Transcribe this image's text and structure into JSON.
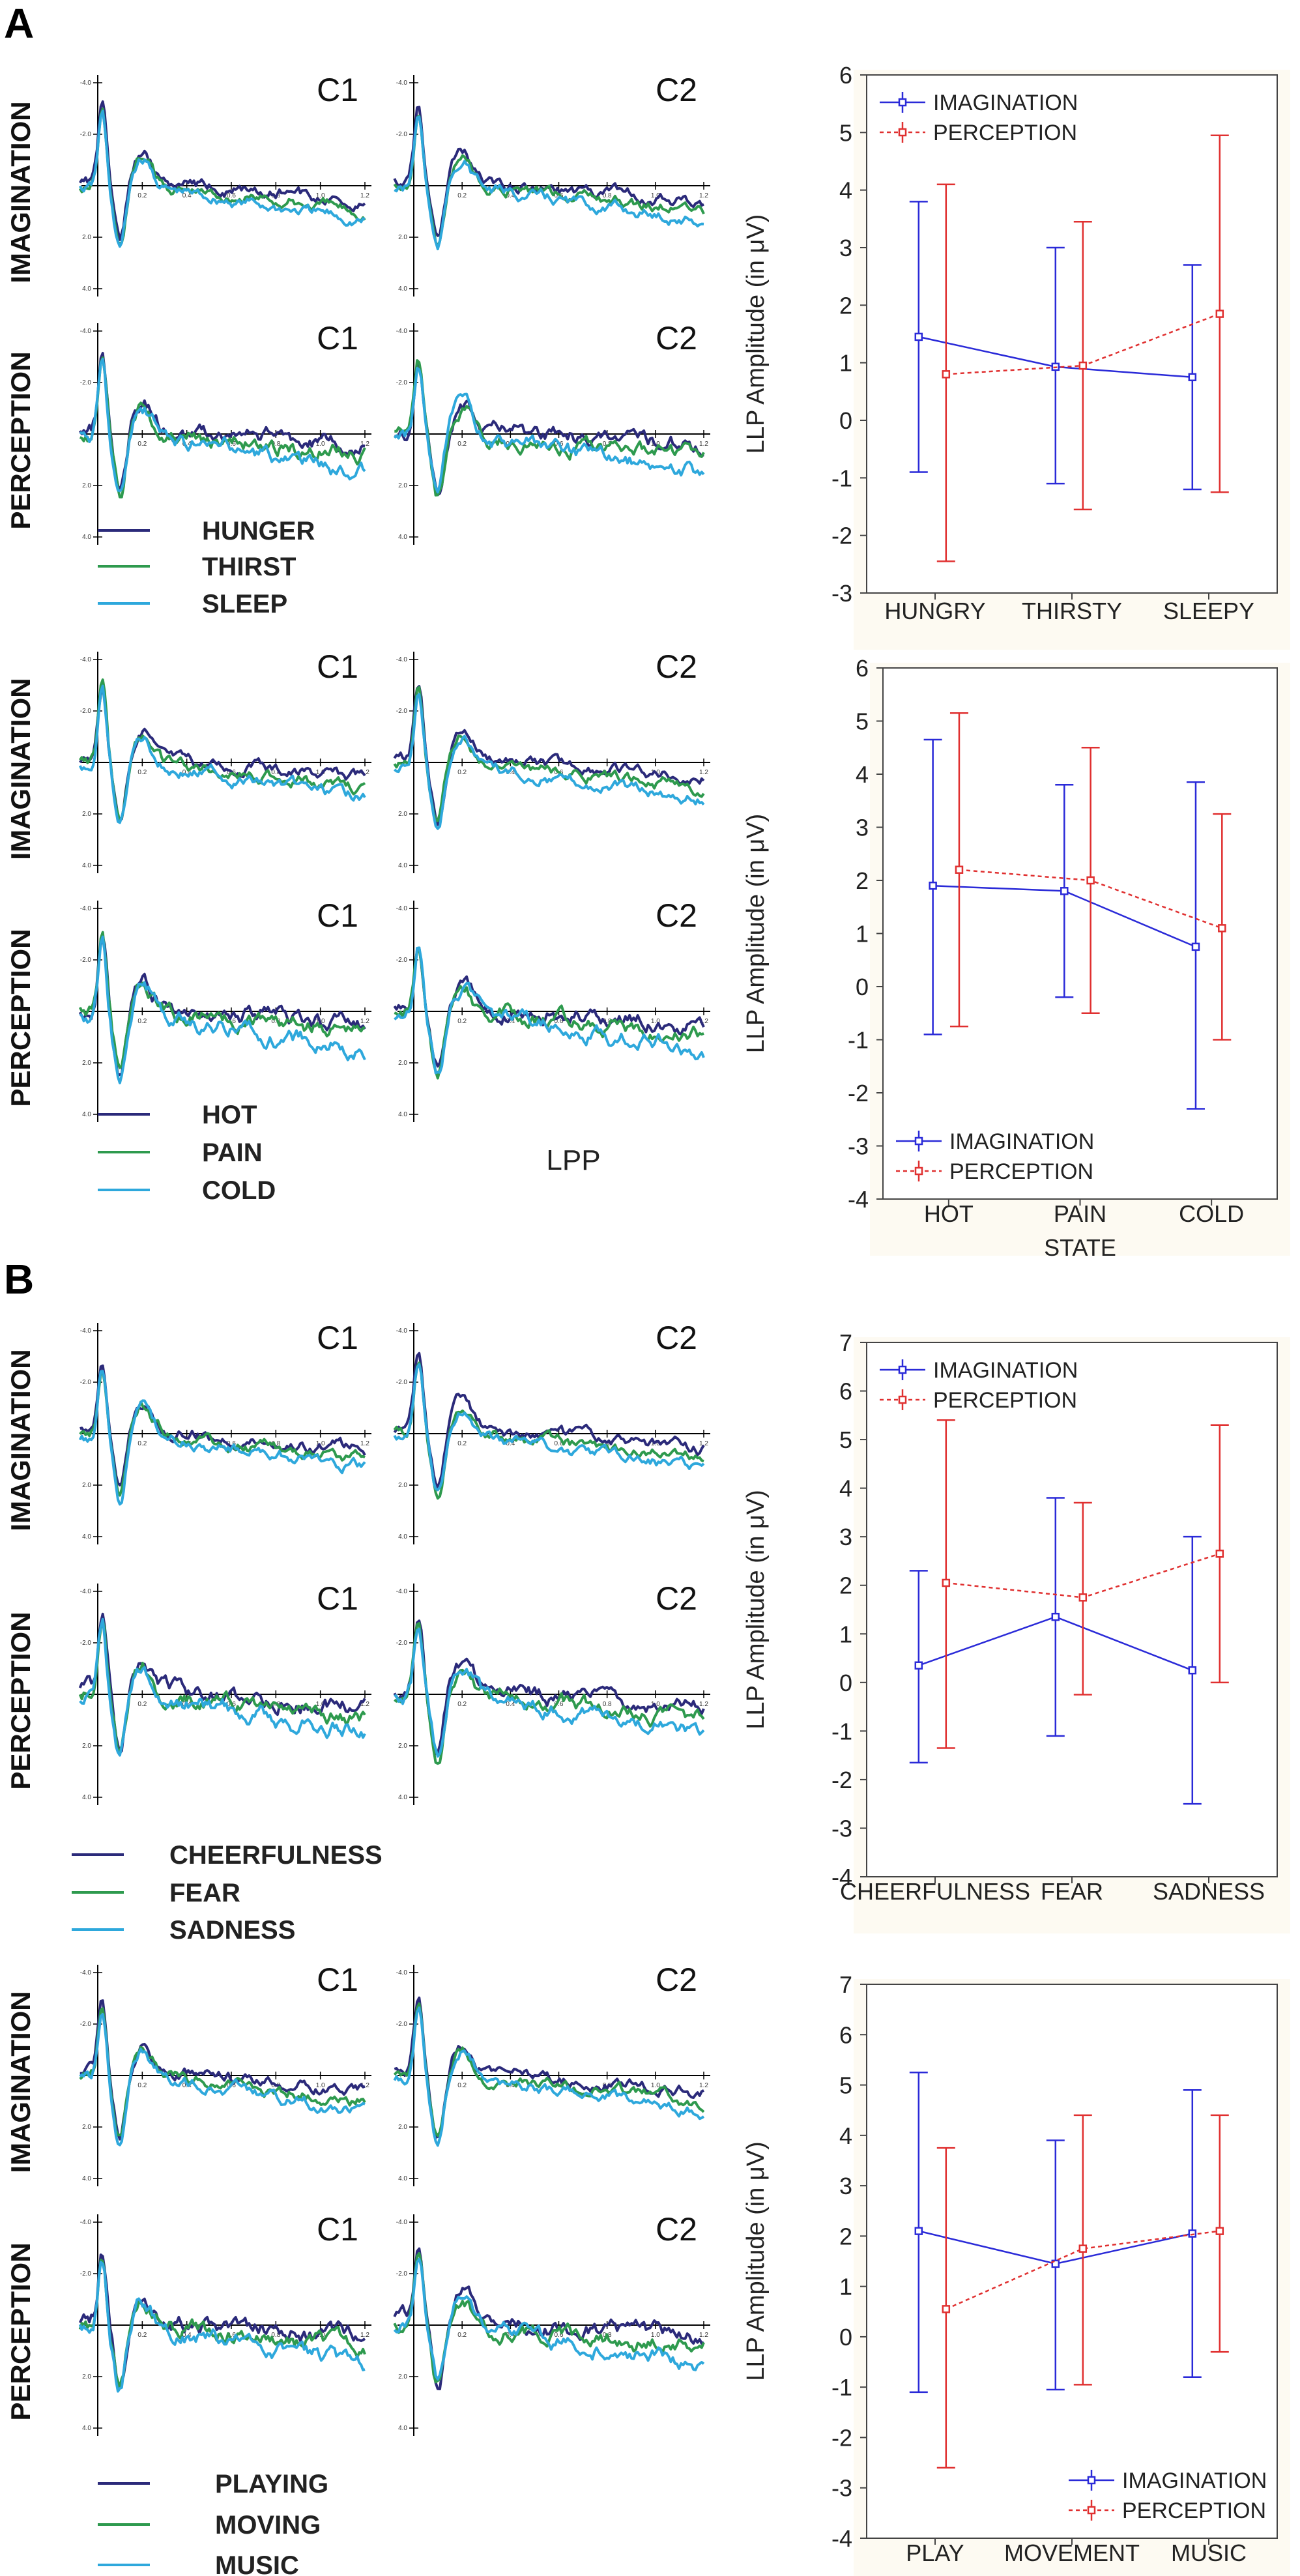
{
  "figure": {
    "panel_labels": [
      "A",
      "B"
    ],
    "erp_groups": [
      {
        "panel": "A",
        "legend": [
          "HUNGER",
          "THIRST",
          "SLEEP"
        ],
        "rows": [
          {
            "label": "IMAGINATION",
            "channels": [
              "C1",
              "C2"
            ]
          },
          {
            "label": "PERCEPTION",
            "channels": [
              "C1",
              "C2"
            ]
          }
        ],
        "note": ""
      },
      {
        "panel": "A",
        "legend": [
          "HOT",
          "PAIN",
          "COLD"
        ],
        "rows": [
          {
            "label": "IMAGINATION",
            "channels": [
              "C1",
              "C2"
            ]
          },
          {
            "label": "PERCEPTION",
            "channels": [
              "C1",
              "C2"
            ]
          }
        ],
        "note": "LPP"
      },
      {
        "panel": "B",
        "legend": [
          "CHEERFULNESS",
          "FEAR",
          "SADNESS"
        ],
        "rows": [
          {
            "label": "IMAGINATION",
            "channels": [
              "C1",
              "C2"
            ]
          },
          {
            "label": "PERCEPTION",
            "channels": [
              "C1",
              "C2"
            ]
          }
        ],
        "note": ""
      },
      {
        "panel": "B",
        "legend": [
          "PLAYING",
          "MOVING",
          "MUSIC"
        ],
        "rows": [
          {
            "label": "IMAGINATION",
            "channels": [
              "C1",
              "C2"
            ]
          },
          {
            "label": "PERCEPTION",
            "channels": [
              "C1",
              "C2"
            ]
          }
        ],
        "note": ""
      }
    ],
    "erp_axis": {
      "y_ticks": [
        "-4.0",
        "-2.0",
        "0",
        "2.0",
        "4.0"
      ],
      "x_ticks": [
        "0",
        "0.2",
        "0.4",
        "0.6",
        "0.8",
        "1.0",
        "1.2"
      ]
    },
    "colors": {
      "series1": "#2b2a7a",
      "series2": "#2e9a4e",
      "series3": "#2ea8dc",
      "imagination": "#2a2ad8",
      "perception": "#e03030"
    }
  },
  "chart_data": [
    {
      "type": "line",
      "title": "",
      "categories": [
        "HUNGRY",
        "THIRSTY",
        "SLEEPY"
      ],
      "xlabel": "",
      "ylabel": "LLP Amplitude (in μV)",
      "ylim": [
        -3,
        6
      ],
      "yticks": [
        -3,
        -2,
        -1,
        0,
        1,
        2,
        3,
        4,
        5,
        6
      ],
      "legend_position": "top-left",
      "series": [
        {
          "name": "IMAGINATION",
          "values": [
            1.45,
            0.93,
            0.75
          ],
          "lower": [
            -0.9,
            -1.1,
            -1.2
          ],
          "upper": [
            3.8,
            3.0,
            2.7
          ]
        },
        {
          "name": "PERCEPTION",
          "values": [
            0.8,
            0.95,
            1.85
          ],
          "lower": [
            -2.45,
            -1.55,
            -1.25
          ],
          "upper": [
            4.1,
            3.45,
            4.95
          ]
        }
      ]
    },
    {
      "type": "line",
      "title": "",
      "categories": [
        "HOT",
        "PAIN",
        "COLD"
      ],
      "xlabel": "STATE",
      "ylabel": "LLP Amplitude (in μV)",
      "ylim": [
        -4,
        6
      ],
      "yticks": [
        -4,
        -3,
        -2,
        -1,
        0,
        1,
        2,
        3,
        4,
        5,
        6
      ],
      "legend_position": "bottom-left",
      "series": [
        {
          "name": "IMAGINATION",
          "values": [
            1.9,
            1.8,
            0.75
          ],
          "lower": [
            -0.9,
            -0.2,
            -2.3
          ],
          "upper": [
            4.65,
            3.8,
            3.85
          ]
        },
        {
          "name": "PERCEPTION",
          "values": [
            2.2,
            2.0,
            1.1
          ],
          "lower": [
            -0.75,
            -0.5,
            -1.0
          ],
          "upper": [
            5.15,
            4.5,
            3.25
          ]
        }
      ]
    },
    {
      "type": "line",
      "title": "",
      "categories": [
        "CHEERFULNESS",
        "FEAR",
        "SADNESS"
      ],
      "xlabel": "",
      "ylabel": "LLP Amplitude (in μV)",
      "ylim": [
        -4,
        7
      ],
      "yticks": [
        -4,
        -3,
        -2,
        -1,
        0,
        1,
        2,
        3,
        4,
        5,
        6,
        7
      ],
      "legend_position": "top-left",
      "series": [
        {
          "name": "IMAGINATION",
          "values": [
            0.35,
            1.35,
            0.25
          ],
          "lower": [
            -1.65,
            -1.1,
            -2.5
          ],
          "upper": [
            2.3,
            3.8,
            3.0
          ]
        },
        {
          "name": "PERCEPTION",
          "values": [
            2.05,
            1.75,
            2.65
          ],
          "lower": [
            -1.35,
            -0.25,
            0.0
          ],
          "upper": [
            5.4,
            3.7,
            5.3
          ]
        }
      ]
    },
    {
      "type": "line",
      "title": "",
      "categories": [
        "PLAY",
        "MOVEMENT",
        "MUSIC"
      ],
      "xlabel": "",
      "ylabel": "LLP Amplitude (in μV)",
      "ylim": [
        -4,
        7
      ],
      "yticks": [
        -4,
        -3,
        -2,
        -1,
        0,
        1,
        2,
        3,
        4,
        5,
        6,
        7
      ],
      "legend_position": "bottom-right",
      "series": [
        {
          "name": "IMAGINATION",
          "values": [
            2.1,
            1.45,
            2.05
          ],
          "lower": [
            -1.1,
            -1.05,
            -0.8
          ],
          "upper": [
            5.25,
            3.9,
            4.9
          ]
        },
        {
          "name": "PERCEPTION",
          "values": [
            0.55,
            1.75,
            2.1
          ],
          "lower": [
            -2.6,
            -0.95,
            -0.3
          ],
          "upper": [
            3.75,
            4.4,
            4.4
          ]
        }
      ]
    }
  ]
}
